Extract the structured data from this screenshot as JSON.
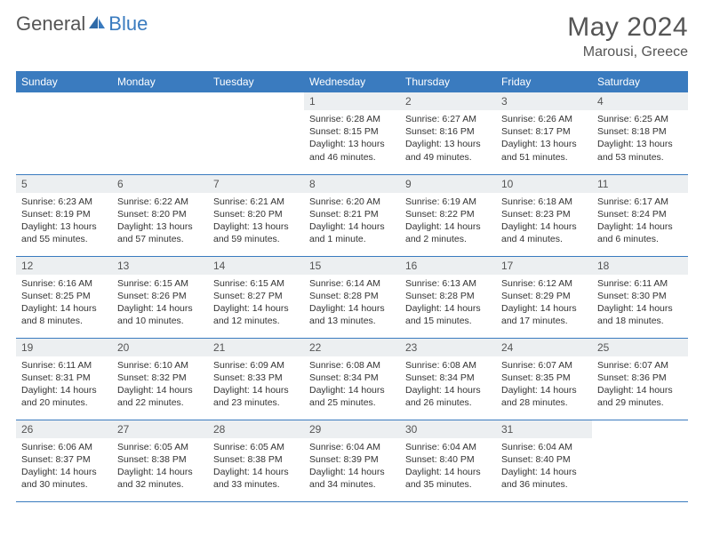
{
  "logo": {
    "general": "General",
    "blue": "Blue"
  },
  "header": {
    "title": "May 2024",
    "location": "Marousi, Greece"
  },
  "colors": {
    "header_bg": "#3a7bbf",
    "header_text": "#ffffff",
    "daynum_bg": "#eceff1",
    "body_text": "#333333",
    "title_text": "#555555",
    "logo_gray": "#555555",
    "logo_blue": "#3a7bbf",
    "row_border": "#3a7bbf"
  },
  "weekdays": [
    "Sunday",
    "Monday",
    "Tuesday",
    "Wednesday",
    "Thursday",
    "Friday",
    "Saturday"
  ],
  "weeks": [
    [
      {
        "n": "",
        "sr": "",
        "ss": "",
        "dl1": "",
        "dl2": "",
        "empty": true
      },
      {
        "n": "",
        "sr": "",
        "ss": "",
        "dl1": "",
        "dl2": "",
        "empty": true
      },
      {
        "n": "",
        "sr": "",
        "ss": "",
        "dl1": "",
        "dl2": "",
        "empty": true
      },
      {
        "n": "1",
        "sr": "Sunrise: 6:28 AM",
        "ss": "Sunset: 8:15 PM",
        "dl1": "Daylight: 13 hours",
        "dl2": "and 46 minutes."
      },
      {
        "n": "2",
        "sr": "Sunrise: 6:27 AM",
        "ss": "Sunset: 8:16 PM",
        "dl1": "Daylight: 13 hours",
        "dl2": "and 49 minutes."
      },
      {
        "n": "3",
        "sr": "Sunrise: 6:26 AM",
        "ss": "Sunset: 8:17 PM",
        "dl1": "Daylight: 13 hours",
        "dl2": "and 51 minutes."
      },
      {
        "n": "4",
        "sr": "Sunrise: 6:25 AM",
        "ss": "Sunset: 8:18 PM",
        "dl1": "Daylight: 13 hours",
        "dl2": "and 53 minutes."
      }
    ],
    [
      {
        "n": "5",
        "sr": "Sunrise: 6:23 AM",
        "ss": "Sunset: 8:19 PM",
        "dl1": "Daylight: 13 hours",
        "dl2": "and 55 minutes."
      },
      {
        "n": "6",
        "sr": "Sunrise: 6:22 AM",
        "ss": "Sunset: 8:20 PM",
        "dl1": "Daylight: 13 hours",
        "dl2": "and 57 minutes."
      },
      {
        "n": "7",
        "sr": "Sunrise: 6:21 AM",
        "ss": "Sunset: 8:20 PM",
        "dl1": "Daylight: 13 hours",
        "dl2": "and 59 minutes."
      },
      {
        "n": "8",
        "sr": "Sunrise: 6:20 AM",
        "ss": "Sunset: 8:21 PM",
        "dl1": "Daylight: 14 hours",
        "dl2": "and 1 minute."
      },
      {
        "n": "9",
        "sr": "Sunrise: 6:19 AM",
        "ss": "Sunset: 8:22 PM",
        "dl1": "Daylight: 14 hours",
        "dl2": "and 2 minutes."
      },
      {
        "n": "10",
        "sr": "Sunrise: 6:18 AM",
        "ss": "Sunset: 8:23 PM",
        "dl1": "Daylight: 14 hours",
        "dl2": "and 4 minutes."
      },
      {
        "n": "11",
        "sr": "Sunrise: 6:17 AM",
        "ss": "Sunset: 8:24 PM",
        "dl1": "Daylight: 14 hours",
        "dl2": "and 6 minutes."
      }
    ],
    [
      {
        "n": "12",
        "sr": "Sunrise: 6:16 AM",
        "ss": "Sunset: 8:25 PM",
        "dl1": "Daylight: 14 hours",
        "dl2": "and 8 minutes."
      },
      {
        "n": "13",
        "sr": "Sunrise: 6:15 AM",
        "ss": "Sunset: 8:26 PM",
        "dl1": "Daylight: 14 hours",
        "dl2": "and 10 minutes."
      },
      {
        "n": "14",
        "sr": "Sunrise: 6:15 AM",
        "ss": "Sunset: 8:27 PM",
        "dl1": "Daylight: 14 hours",
        "dl2": "and 12 minutes."
      },
      {
        "n": "15",
        "sr": "Sunrise: 6:14 AM",
        "ss": "Sunset: 8:28 PM",
        "dl1": "Daylight: 14 hours",
        "dl2": "and 13 minutes."
      },
      {
        "n": "16",
        "sr": "Sunrise: 6:13 AM",
        "ss": "Sunset: 8:28 PM",
        "dl1": "Daylight: 14 hours",
        "dl2": "and 15 minutes."
      },
      {
        "n": "17",
        "sr": "Sunrise: 6:12 AM",
        "ss": "Sunset: 8:29 PM",
        "dl1": "Daylight: 14 hours",
        "dl2": "and 17 minutes."
      },
      {
        "n": "18",
        "sr": "Sunrise: 6:11 AM",
        "ss": "Sunset: 8:30 PM",
        "dl1": "Daylight: 14 hours",
        "dl2": "and 18 minutes."
      }
    ],
    [
      {
        "n": "19",
        "sr": "Sunrise: 6:11 AM",
        "ss": "Sunset: 8:31 PM",
        "dl1": "Daylight: 14 hours",
        "dl2": "and 20 minutes."
      },
      {
        "n": "20",
        "sr": "Sunrise: 6:10 AM",
        "ss": "Sunset: 8:32 PM",
        "dl1": "Daylight: 14 hours",
        "dl2": "and 22 minutes."
      },
      {
        "n": "21",
        "sr": "Sunrise: 6:09 AM",
        "ss": "Sunset: 8:33 PM",
        "dl1": "Daylight: 14 hours",
        "dl2": "and 23 minutes."
      },
      {
        "n": "22",
        "sr": "Sunrise: 6:08 AM",
        "ss": "Sunset: 8:34 PM",
        "dl1": "Daylight: 14 hours",
        "dl2": "and 25 minutes."
      },
      {
        "n": "23",
        "sr": "Sunrise: 6:08 AM",
        "ss": "Sunset: 8:34 PM",
        "dl1": "Daylight: 14 hours",
        "dl2": "and 26 minutes."
      },
      {
        "n": "24",
        "sr": "Sunrise: 6:07 AM",
        "ss": "Sunset: 8:35 PM",
        "dl1": "Daylight: 14 hours",
        "dl2": "and 28 minutes."
      },
      {
        "n": "25",
        "sr": "Sunrise: 6:07 AM",
        "ss": "Sunset: 8:36 PM",
        "dl1": "Daylight: 14 hours",
        "dl2": "and 29 minutes."
      }
    ],
    [
      {
        "n": "26",
        "sr": "Sunrise: 6:06 AM",
        "ss": "Sunset: 8:37 PM",
        "dl1": "Daylight: 14 hours",
        "dl2": "and 30 minutes."
      },
      {
        "n": "27",
        "sr": "Sunrise: 6:05 AM",
        "ss": "Sunset: 8:38 PM",
        "dl1": "Daylight: 14 hours",
        "dl2": "and 32 minutes."
      },
      {
        "n": "28",
        "sr": "Sunrise: 6:05 AM",
        "ss": "Sunset: 8:38 PM",
        "dl1": "Daylight: 14 hours",
        "dl2": "and 33 minutes."
      },
      {
        "n": "29",
        "sr": "Sunrise: 6:04 AM",
        "ss": "Sunset: 8:39 PM",
        "dl1": "Daylight: 14 hours",
        "dl2": "and 34 minutes."
      },
      {
        "n": "30",
        "sr": "Sunrise: 6:04 AM",
        "ss": "Sunset: 8:40 PM",
        "dl1": "Daylight: 14 hours",
        "dl2": "and 35 minutes."
      },
      {
        "n": "31",
        "sr": "Sunrise: 6:04 AM",
        "ss": "Sunset: 8:40 PM",
        "dl1": "Daylight: 14 hours",
        "dl2": "and 36 minutes."
      },
      {
        "n": "",
        "sr": "",
        "ss": "",
        "dl1": "",
        "dl2": "",
        "empty": true
      }
    ]
  ]
}
